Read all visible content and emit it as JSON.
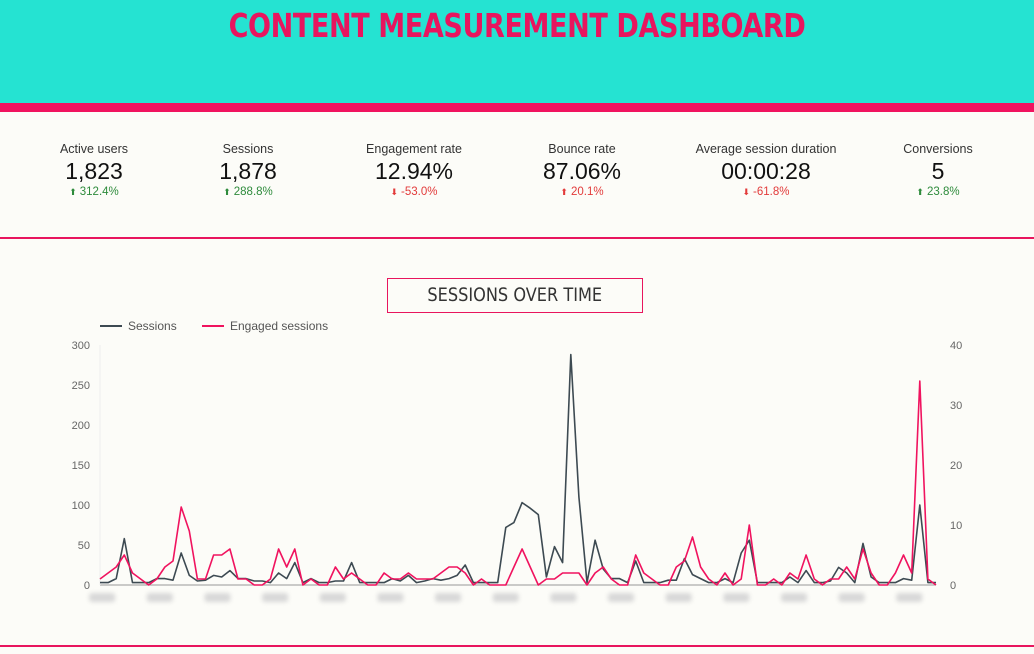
{
  "header": {
    "title": "CONTENT MEASUREMENT DASHBOARD",
    "bg_color": "#25e3d2",
    "accent_color": "#f0135f"
  },
  "kpis": [
    {
      "label": "Active users",
      "value": "1,823",
      "delta": "312.4%",
      "direction": "up"
    },
    {
      "label": "Sessions",
      "value": "1,878",
      "delta": "288.8%",
      "direction": "up"
    },
    {
      "label": "Engagement rate",
      "value": "12.94%",
      "delta": "-53.0%",
      "direction": "down"
    },
    {
      "label": "Bounce rate",
      "value": "87.06%",
      "delta": "20.1%",
      "direction": "down"
    },
    {
      "label": "Average session duration",
      "value": "00:00:28",
      "delta": "-61.8%",
      "direction": "down"
    },
    {
      "label": "Conversions",
      "value": "5",
      "delta": "23.8%",
      "direction": "up"
    }
  ],
  "chart_title": "SESSIONS OVER TIME",
  "chart_data": {
    "type": "line",
    "title": "SESSIONS OVER TIME",
    "left_ylim": [
      0,
      300
    ],
    "left_yticks": [
      0,
      50,
      100,
      150,
      200,
      250,
      300
    ],
    "right_ylim": [
      0,
      40
    ],
    "right_yticks": [
      0,
      10,
      20,
      30,
      40
    ],
    "grid": false,
    "legend_position": "top-left",
    "x_labels_visible": false,
    "series": [
      {
        "name": "Sessions",
        "axis": "left",
        "color": "#3d4a52",
        "values": [
          3,
          3,
          8,
          58,
          3,
          3,
          3,
          8,
          8,
          6,
          40,
          12,
          5,
          6,
          12,
          10,
          18,
          8,
          8,
          5,
          5,
          3,
          15,
          8,
          28,
          3,
          8,
          3,
          3,
          5,
          5,
          28,
          3,
          3,
          3,
          3,
          8,
          5,
          12,
          3,
          5,
          8,
          6,
          8,
          12,
          25,
          3,
          3,
          3,
          3,
          72,
          78,
          103,
          96,
          88,
          10,
          48,
          28,
          288,
          110,
          3,
          56,
          20,
          8,
          8,
          3,
          30,
          3,
          3,
          3,
          6,
          6,
          33,
          13,
          8,
          3,
          3,
          8,
          3,
          40,
          56,
          3,
          3,
          3,
          3,
          10,
          3,
          18,
          3,
          3,
          5,
          22,
          15,
          3,
          52,
          10,
          3,
          3,
          3,
          8,
          6,
          100,
          3,
          3
        ]
      },
      {
        "name": "Engaged sessions",
        "axis": "right",
        "color": "#f0135f",
        "values": [
          1,
          2,
          3,
          5,
          2,
          1,
          0,
          1,
          3,
          4,
          13,
          9,
          1,
          1,
          5,
          5,
          6,
          1,
          1,
          0,
          0,
          1,
          6,
          3,
          6,
          0,
          1,
          0,
          0,
          3,
          1,
          2,
          1,
          0,
          0,
          2,
          1,
          1,
          2,
          1,
          1,
          1,
          2,
          3,
          3,
          2,
          0,
          1,
          0,
          0,
          0,
          3,
          6,
          3,
          0,
          1,
          1,
          2,
          2,
          2,
          0,
          2,
          3,
          1,
          0,
          0,
          5,
          2,
          1,
          0,
          0,
          3,
          4,
          8,
          3,
          1,
          0,
          2,
          0,
          1,
          10,
          0,
          0,
          1,
          0,
          2,
          1,
          5,
          1,
          0,
          1,
          1,
          3,
          1,
          6,
          2,
          0,
          0,
          2,
          5,
          2,
          34,
          1,
          0
        ]
      }
    ]
  }
}
